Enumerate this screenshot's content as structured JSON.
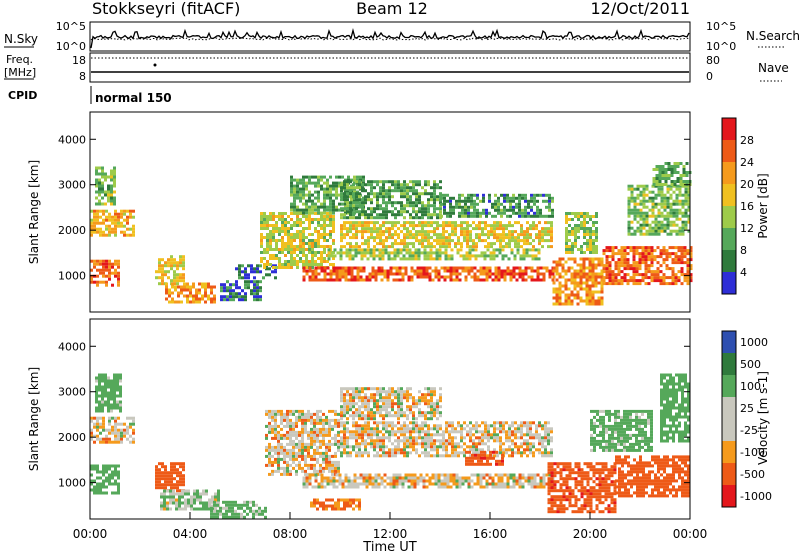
{
  "header": {
    "station": "Stokkseyri (fitACF)",
    "beam": "Beam 12",
    "date": "12/Oct/2011"
  },
  "noise_panel": {
    "left_label": "N.Sky",
    "right_label": "N.Search",
    "left_ticks": [
      "10^5",
      "10^0"
    ],
    "right_ticks": [
      "10^5",
      "10^0"
    ]
  },
  "freq_panel": {
    "left_label_1": "Freq.",
    "left_label_2": "[MHz]",
    "right_label": "Nave",
    "left_ticks": [
      "18",
      "8"
    ],
    "right_ticks": [
      "80",
      "0"
    ]
  },
  "cpid": {
    "label": "CPID",
    "value": "normal 150"
  },
  "colors": {
    "power": [
      "#2e2ed6",
      "#2f7a3c",
      "#55a85a",
      "#9ecb4a",
      "#f0c020",
      "#f59a1c",
      "#ee5a17",
      "#e4171c"
    ],
    "velocity": [
      "#e4171c",
      "#ee5a17",
      "#f59a1c",
      "#c9c8be",
      "#c9c8be",
      "#55a85a",
      "#2f7a3c",
      "#2e4fb0"
    ]
  },
  "chart_data": [
    {
      "type": "heatmap",
      "panel": "power",
      "ylabel": "Slant Range [km]",
      "ylim": [
        200,
        4600
      ],
      "yticks": [
        "1000",
        "2000",
        "3000",
        "4000"
      ],
      "xlim": [
        "00:00",
        "24:00"
      ],
      "colorbar_label": "Power [dB]",
      "colorbar_ticks": [
        "4",
        "8",
        "12",
        "16",
        "20",
        "24",
        "28"
      ],
      "bands": [
        {
          "t": [
            0.0,
            1.2
          ],
          "range": [
            780,
            1350
          ],
          "value": 26
        },
        {
          "t": [
            0.0,
            1.8
          ],
          "range": [
            1900,
            2450
          ],
          "value": 20
        },
        {
          "t": [
            0.2,
            1.0
          ],
          "range": [
            2550,
            3400
          ],
          "value": 12
        },
        {
          "t": [
            2.6,
            3.8
          ],
          "range": [
            800,
            1450
          ],
          "value": 18
        },
        {
          "t": [
            3.0,
            5.0
          ],
          "range": [
            420,
            850
          ],
          "value": 22
        },
        {
          "t": [
            5.2,
            6.8
          ],
          "range": [
            500,
            900
          ],
          "value": 6
        },
        {
          "t": [
            5.8,
            7.4
          ],
          "range": [
            950,
            1250
          ],
          "value": 4
        },
        {
          "t": [
            6.8,
            9.8
          ],
          "range": [
            1200,
            2400
          ],
          "value": 16
        },
        {
          "t": [
            8.0,
            11.0
          ],
          "range": [
            2400,
            3200
          ],
          "value": 10
        },
        {
          "t": [
            8.5,
            18.5
          ],
          "range": [
            900,
            1200
          ],
          "value": 26
        },
        {
          "t": [
            9.5,
            18.0
          ],
          "range": [
            1350,
            1600
          ],
          "value": 14
        },
        {
          "t": [
            10.0,
            18.5
          ],
          "range": [
            1650,
            2200
          ],
          "value": 17
        },
        {
          "t": [
            10.0,
            14.0
          ],
          "range": [
            2300,
            3100
          ],
          "value": 9
        },
        {
          "t": [
            14.0,
            18.5
          ],
          "range": [
            2300,
            2800
          ],
          "value": 8
        },
        {
          "t": [
            18.5,
            20.5
          ],
          "range": [
            350,
            1400
          ],
          "value": 22
        },
        {
          "t": [
            19.0,
            20.3
          ],
          "range": [
            1500,
            2400
          ],
          "value": 13
        },
        {
          "t": [
            20.5,
            24.0
          ],
          "range": [
            800,
            1650
          ],
          "value": 25
        },
        {
          "t": [
            21.5,
            24.0
          ],
          "range": [
            1900,
            3000
          ],
          "value": 12
        },
        {
          "t": [
            22.5,
            24.0
          ],
          "range": [
            3000,
            3500
          ],
          "value": 10
        }
      ]
    },
    {
      "type": "heatmap",
      "panel": "velocity",
      "ylabel": "Slant Range [km]",
      "xlabel": "Time UT",
      "ylim": [
        200,
        4600
      ],
      "yticks": [
        "1000",
        "2000",
        "3000",
        "4000"
      ],
      "xticks": [
        "00:00",
        "04:00",
        "08:00",
        "12:00",
        "16:00",
        "20:00",
        "00:00"
      ],
      "xlim": [
        "00:00",
        "24:00"
      ],
      "colorbar_label": "Velocity [m s-1]",
      "colorbar_ticks": [
        "1000",
        "500",
        "100",
        "25",
        "-25",
        "-100",
        "-500",
        "-1000"
      ],
      "bands": [
        {
          "t": [
            0.0,
            1.2
          ],
          "range": [
            750,
            1400
          ],
          "value": 300
        },
        {
          "t": [
            0.0,
            1.8
          ],
          "range": [
            1900,
            2450
          ],
          "value": 0
        },
        {
          "t": [
            0.2,
            1.2
          ],
          "range": [
            2550,
            3400
          ],
          "value": 200
        },
        {
          "t": [
            2.6,
            3.8
          ],
          "range": [
            800,
            1450
          ],
          "value": -300
        },
        {
          "t": [
            2.8,
            5.2
          ],
          "range": [
            420,
            850
          ],
          "value": 80
        },
        {
          "t": [
            4.8,
            7.0
          ],
          "range": [
            220,
            600
          ],
          "value": 150
        },
        {
          "t": [
            7.0,
            10.0
          ],
          "range": [
            1200,
            2600
          ],
          "value": 0
        },
        {
          "t": [
            8.5,
            18.5
          ],
          "range": [
            900,
            1200
          ],
          "value": 0
        },
        {
          "t": [
            8.8,
            10.8
          ],
          "range": [
            450,
            650
          ],
          "value": -150
        },
        {
          "t": [
            10.0,
            18.5
          ],
          "range": [
            1600,
            2350
          ],
          "value": 0
        },
        {
          "t": [
            15.0,
            16.5
          ],
          "range": [
            1400,
            1700
          ],
          "value": -400
        },
        {
          "t": [
            10.0,
            14.0
          ],
          "range": [
            2400,
            3100
          ],
          "value": 0
        },
        {
          "t": [
            18.3,
            21.0
          ],
          "range": [
            350,
            1450
          ],
          "value": -400
        },
        {
          "t": [
            21.0,
            24.0
          ],
          "range": [
            700,
            1600
          ],
          "value": -300
        },
        {
          "t": [
            20.0,
            22.5
          ],
          "range": [
            1700,
            2600
          ],
          "value": 200
        },
        {
          "t": [
            22.8,
            24.0
          ],
          "range": [
            1900,
            3400
          ],
          "value": 300
        }
      ]
    }
  ]
}
